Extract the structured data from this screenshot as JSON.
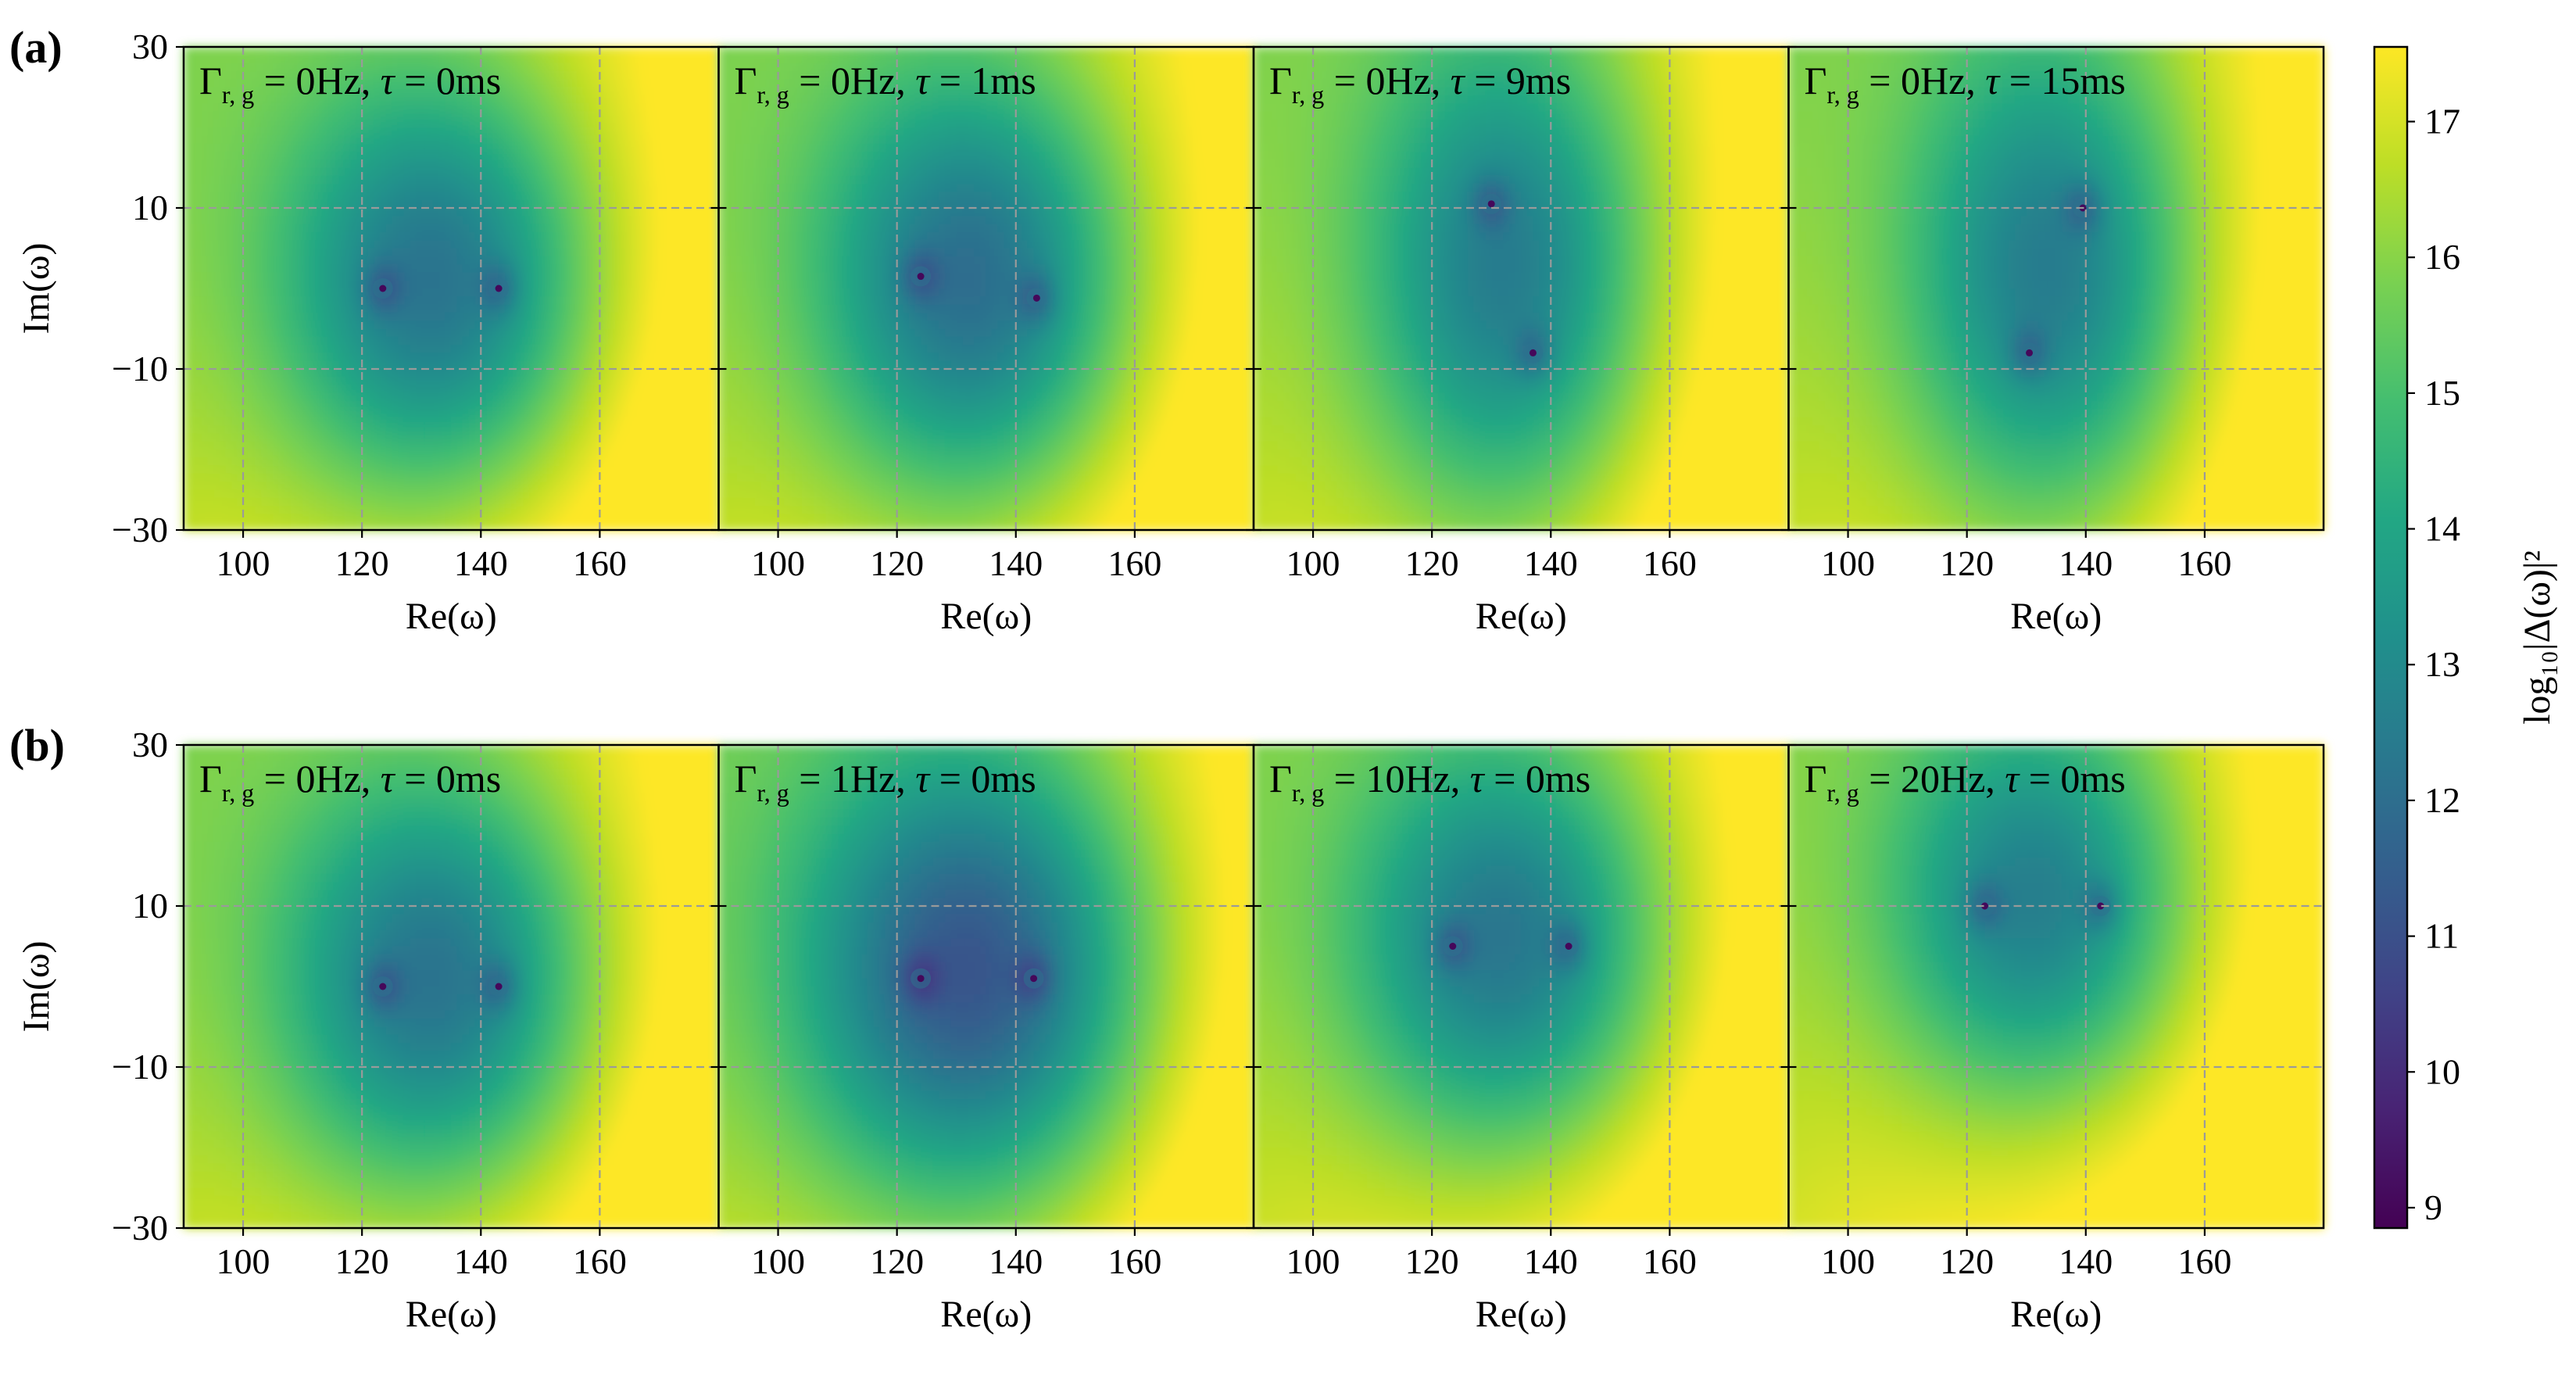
{
  "figure": {
    "colorbar": {
      "label": "log₁₀|Δ(ω)|²",
      "range": [
        8.85,
        17.55
      ],
      "ticks": [
        9,
        10,
        11,
        12,
        13,
        14,
        15,
        16,
        17
      ],
      "colormap": "viridis"
    }
  },
  "chart_data": [
    {
      "type": "heatmap",
      "row_label": "(a)",
      "title": "Γr,g = 0Hz, τ = 0ms",
      "title_parts": [
        "0Hz",
        "0ms"
      ],
      "xlabel": "Re(ω)",
      "ylabel": "Im(ω)",
      "xlim": [
        90,
        180
      ],
      "ylim": [
        -30,
        30
      ],
      "xticks": [
        100,
        120,
        140,
        160
      ],
      "yticks": [
        -30,
        -10,
        10,
        30
      ],
      "grid": true,
      "zeros": [
        [
          123.5,
          0
        ],
        [
          143,
          0
        ]
      ],
      "base": 12.2,
      "spread": [
        25,
        25
      ]
    },
    {
      "type": "heatmap",
      "row_label": "",
      "title": "Γr,g = 0Hz, τ = 1ms",
      "title_parts": [
        "0Hz",
        "1ms"
      ],
      "xlabel": "Re(ω)",
      "ylabel": "",
      "xlim": [
        90,
        180
      ],
      "ylim": [
        -30,
        30
      ],
      "xticks": [
        100,
        120,
        140,
        160
      ],
      "yticks": [
        -30,
        -10,
        10,
        30
      ],
      "grid": true,
      "zeros": [
        [
          124,
          1.5
        ],
        [
          143.5,
          -1.2
        ]
      ],
      "base": 12.0,
      "spread": [
        25,
        26
      ]
    },
    {
      "type": "heatmap",
      "row_label": "",
      "title": "Γr,g = 0Hz, τ = 9ms",
      "title_parts": [
        "0Hz",
        "9ms"
      ],
      "xlabel": "Re(ω)",
      "ylabel": "",
      "xlim": [
        90,
        180
      ],
      "ylim": [
        -30,
        30
      ],
      "xticks": [
        100,
        120,
        140,
        160
      ],
      "yticks": [
        -30,
        -10,
        10,
        30
      ],
      "grid": true,
      "zeros": [
        [
          130,
          10.5
        ],
        [
          137,
          -8
        ]
      ],
      "base": 12.5,
      "spread": [
        23,
        30
      ]
    },
    {
      "type": "heatmap",
      "row_label": "",
      "title": "Γr,g = 0Hz, τ = 15ms",
      "title_parts": [
        "0Hz",
        "15ms"
      ],
      "xlabel": "Re(ω)",
      "ylabel": "",
      "xlim": [
        90,
        180
      ],
      "ylim": [
        -30,
        30
      ],
      "xticks": [
        100,
        120,
        140,
        160
      ],
      "yticks": [
        -30,
        -10,
        10,
        30
      ],
      "grid": true,
      "zeros": [
        [
          139.5,
          10
        ],
        [
          130.5,
          -8
        ]
      ],
      "base": 12.5,
      "spread": [
        23,
        30
      ]
    },
    {
      "type": "heatmap",
      "row_label": "(b)",
      "title": "Γr,g = 0Hz, τ = 0ms",
      "title_parts": [
        "0Hz",
        "0ms"
      ],
      "xlabel": "Re(ω)",
      "ylabel": "Im(ω)",
      "xlim": [
        90,
        180
      ],
      "ylim": [
        -30,
        30
      ],
      "xticks": [
        100,
        120,
        140,
        160
      ],
      "yticks": [
        -30,
        -10,
        10,
        30
      ],
      "grid": true,
      "zeros": [
        [
          123.5,
          0
        ],
        [
          143,
          0
        ]
      ],
      "base": 12.2,
      "spread": [
        25,
        25
      ]
    },
    {
      "type": "heatmap",
      "row_label": "",
      "title": "Γr,g = 1Hz, τ = 0ms",
      "title_parts": [
        "1Hz",
        "0ms"
      ],
      "xlabel": "Re(ω)",
      "ylabel": "",
      "xlim": [
        90,
        180
      ],
      "ylim": [
        -30,
        30
      ],
      "xticks": [
        100,
        120,
        140,
        160
      ],
      "yticks": [
        -30,
        -10,
        10,
        30
      ],
      "grid": true,
      "zeros": [
        [
          124,
          1
        ],
        [
          143,
          1
        ]
      ],
      "base": 11.2,
      "spread": [
        28,
        28
      ]
    },
    {
      "type": "heatmap",
      "row_label": "",
      "title": "Γr,g = 10Hz, τ = 0ms",
      "title_parts": [
        "10Hz",
        "0ms"
      ],
      "xlabel": "Re(ω)",
      "ylabel": "",
      "xlim": [
        90,
        180
      ],
      "ylim": [
        -30,
        30
      ],
      "xticks": [
        100,
        120,
        140,
        160
      ],
      "yticks": [
        -30,
        -10,
        10,
        30
      ],
      "grid": true,
      "zeros": [
        [
          123.5,
          5
        ],
        [
          143,
          5
        ]
      ],
      "base": 12.3,
      "spread": [
        25,
        25
      ]
    },
    {
      "type": "heatmap",
      "row_label": "",
      "title": "Γr,g = 20Hz, τ = 0ms",
      "title_parts": [
        "20Hz",
        "0ms"
      ],
      "xlabel": "Re(ω)",
      "ylabel": "",
      "xlim": [
        90,
        180
      ],
      "ylim": [
        -30,
        30
      ],
      "xticks": [
        100,
        120,
        140,
        160
      ],
      "yticks": [
        -30,
        -10,
        10,
        30
      ],
      "grid": true,
      "zeros": [
        [
          123,
          10
        ],
        [
          142.5,
          10
        ]
      ],
      "base": 12.6,
      "spread": [
        24,
        24
      ]
    }
  ]
}
